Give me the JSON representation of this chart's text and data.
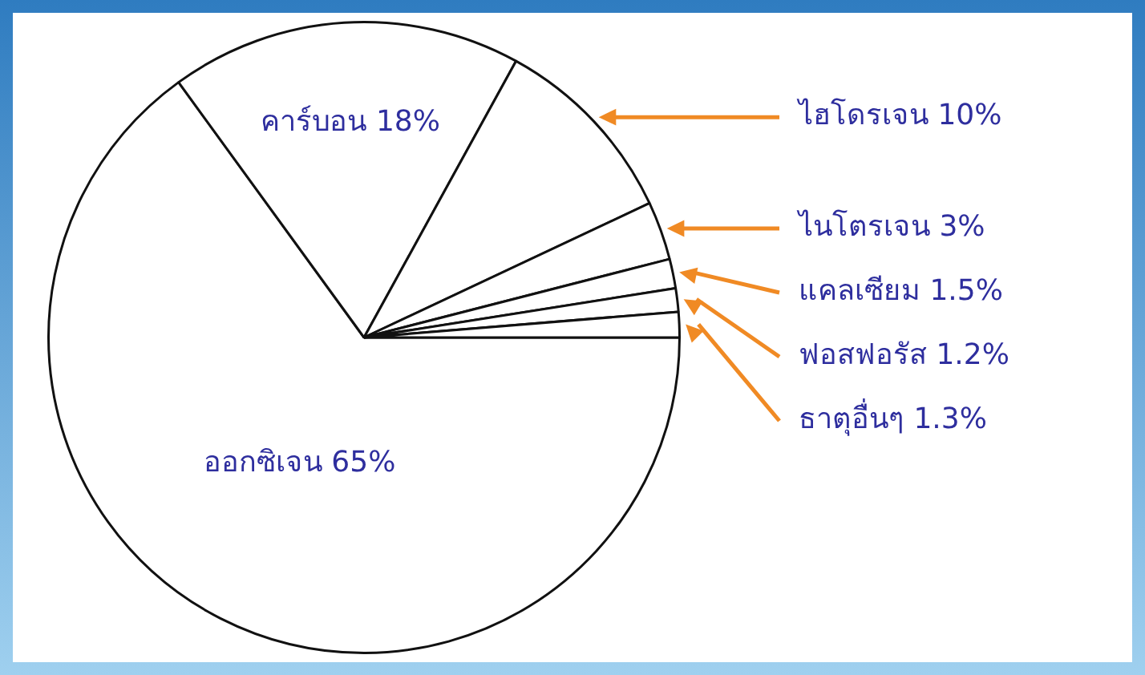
{
  "chart_data": {
    "type": "pie",
    "categories": [
      "ออกซิเจน",
      "คาร์บอน",
      "ไฮโดรเจน",
      "ไนโตรเจน",
      "แคลเซียม",
      "ฟอสฟอรัส",
      "ธาตุอื่นๆ"
    ],
    "values": [
      65,
      18,
      10,
      3,
      1.5,
      1.2,
      1.3
    ],
    "colors": [
      "#ffffff",
      "#ffffff",
      "#ffffff",
      "#ffffff",
      "#ffffff",
      "#ffffff",
      "#ffffff"
    ],
    "value_labels": [
      "65%",
      "18%",
      "10%",
      "3%",
      "1.5%",
      "1.2%",
      "1.3%"
    ],
    "legend": false
  }
}
